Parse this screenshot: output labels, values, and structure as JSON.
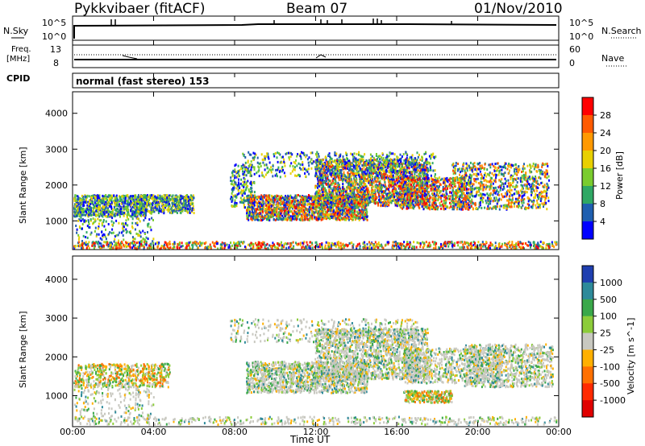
{
  "header": {
    "radar": "Pykkvibaer (fitACF)",
    "beam": "Beam 07",
    "date": "01/Nov/2010"
  },
  "noise_panel": {
    "left_label": "N.Sky",
    "left_ticks": [
      "10^5",
      "10^0"
    ],
    "right_ticks": [
      "10^5",
      "10^0"
    ],
    "right_label": "N.Search"
  },
  "freq_panel": {
    "left_label_1": "Freq.",
    "left_label_2": "[MHz]",
    "left_ticks": [
      "13",
      "8"
    ],
    "right_ticks": [
      "60",
      "0"
    ],
    "right_label": "Nave"
  },
  "cpid_panel": {
    "label": "CPID",
    "text": "normal (fast stereo) 153"
  },
  "chart_data": [
    {
      "type": "heatmap",
      "title": "",
      "ylabel": "Slant Range [km]",
      "xlabel": "",
      "ylim": [
        200,
        4600
      ],
      "yticks": [
        "1000",
        "2000",
        "3000",
        "4000"
      ],
      "colorbar": {
        "label": "Power [dB]",
        "ticks": [
          "28",
          "24",
          "20",
          "16",
          "12",
          "8",
          "4"
        ],
        "colors": [
          "#ff0000",
          "#ff5a00",
          "#ff9900",
          "#e8d000",
          "#7acc2e",
          "#2fa864",
          "#1f5fb0",
          "#0000ff"
        ]
      }
    },
    {
      "type": "heatmap",
      "title": "",
      "ylabel": "Slant Range [km]",
      "xlabel": "Time UT",
      "ylim": [
        200,
        4600
      ],
      "yticks": [
        "1000",
        "2000",
        "3000",
        "4000"
      ],
      "xticks": [
        "00:00",
        "04:00",
        "08:00",
        "12:00",
        "16:00",
        "20:00",
        "00:00"
      ],
      "colorbar": {
        "label": "Velocity [m s^-1]",
        "ticks": [
          "1000",
          "500",
          "100",
          "25",
          "-25",
          "-100",
          "-500",
          "-1000"
        ],
        "colors": [
          "#1f3fb0",
          "#2e8a9a",
          "#3aa84a",
          "#8ccc3a",
          "#c8c8c0",
          "#ffb000",
          "#ff7000",
          "#ff2a00",
          "#e00000"
        ]
      }
    }
  ]
}
